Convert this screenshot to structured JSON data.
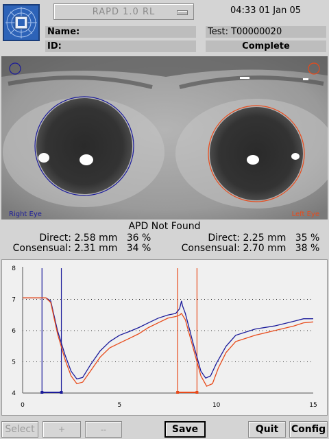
{
  "header": {
    "mode": "RAPD 1.0 RL",
    "datetime": "04:33 01 Jan 05",
    "name_label": "Name:",
    "id_label": "ID:",
    "test_label": "Test: T00000020",
    "status": "Complete"
  },
  "eyes": {
    "right_label": "Right Eye",
    "left_label": "Left Eye",
    "right_color": "#1a1a9a",
    "left_color": "#e84a1a"
  },
  "results": {
    "title": "APD Not Found",
    "right": {
      "direct_label": "Direct:",
      "direct_value": "2.58 mm",
      "direct_pct": "36 %",
      "consensual_label": "Consensual:",
      "consensual_value": "2.31 mm",
      "consensual_pct": "34 %"
    },
    "left": {
      "direct_label": "Direct:",
      "direct_value": "2.25 mm",
      "direct_pct": "35 %",
      "consensual_label": "Consensual:",
      "consensual_value": "2.70 mm",
      "consensual_pct": "38 %"
    }
  },
  "chart_data": {
    "type": "line",
    "xlim": [
      0,
      15
    ],
    "ylim": [
      4,
      8
    ],
    "x_ticks": [
      "0",
      "5",
      "10",
      "15"
    ],
    "y_ticks": [
      "4",
      "5",
      "6",
      "7",
      "8"
    ],
    "grid": "horizontal-dotted",
    "stimulus_right": {
      "start": 1,
      "end": 2,
      "color": "#1a1a9a"
    },
    "stimulus_left": {
      "start": 8,
      "end": 9,
      "color": "#e84a1a"
    },
    "series": [
      {
        "color": "#1a1a9a",
        "points": [
          [
            0,
            7.05
          ],
          [
            1.2,
            7.05
          ],
          [
            1.45,
            6.95
          ],
          [
            1.8,
            6.0
          ],
          [
            2.2,
            5.2
          ],
          [
            2.5,
            4.7
          ],
          [
            2.8,
            4.45
          ],
          [
            3.1,
            4.5
          ],
          [
            3.5,
            4.9
          ],
          [
            4,
            5.35
          ],
          [
            4.5,
            5.65
          ],
          [
            5,
            5.85
          ],
          [
            5.5,
            5.97
          ],
          [
            6,
            6.1
          ],
          [
            6.5,
            6.25
          ],
          [
            7,
            6.4
          ],
          [
            7.5,
            6.5
          ],
          [
            7.9,
            6.55
          ],
          [
            8.1,
            6.7
          ],
          [
            8.2,
            6.95
          ],
          [
            8.25,
            6.8
          ],
          [
            8.4,
            6.55
          ],
          [
            8.8,
            5.6
          ],
          [
            9.2,
            4.7
          ],
          [
            9.45,
            4.48
          ],
          [
            9.7,
            4.55
          ],
          [
            10,
            4.95
          ],
          [
            10.5,
            5.5
          ],
          [
            11,
            5.85
          ],
          [
            11.5,
            5.95
          ],
          [
            12,
            6.05
          ],
          [
            13,
            6.15
          ],
          [
            14,
            6.3
          ],
          [
            14.5,
            6.38
          ],
          [
            15,
            6.38
          ]
        ]
      },
      {
        "color": "#e84a1a",
        "points": [
          [
            0,
            7.05
          ],
          [
            1.2,
            7.05
          ],
          [
            1.45,
            6.9
          ],
          [
            1.8,
            5.9
          ],
          [
            2.2,
            5.05
          ],
          [
            2.5,
            4.55
          ],
          [
            2.8,
            4.3
          ],
          [
            3.1,
            4.35
          ],
          [
            3.5,
            4.7
          ],
          [
            4,
            5.15
          ],
          [
            4.5,
            5.45
          ],
          [
            5,
            5.6
          ],
          [
            5.5,
            5.75
          ],
          [
            6,
            5.9
          ],
          [
            6.5,
            6.1
          ],
          [
            7,
            6.25
          ],
          [
            7.5,
            6.4
          ],
          [
            7.9,
            6.45
          ],
          [
            8.1,
            6.5
          ],
          [
            8.2,
            6.55
          ],
          [
            8.4,
            6.35
          ],
          [
            8.8,
            5.45
          ],
          [
            9.2,
            4.55
          ],
          [
            9.5,
            4.22
          ],
          [
            9.8,
            4.3
          ],
          [
            10.1,
            4.8
          ],
          [
            10.5,
            5.3
          ],
          [
            11,
            5.65
          ],
          [
            11.5,
            5.75
          ],
          [
            12,
            5.85
          ],
          [
            13,
            6.0
          ],
          [
            14,
            6.15
          ],
          [
            14.5,
            6.25
          ],
          [
            15,
            6.28
          ]
        ]
      }
    ]
  },
  "footer": {
    "select_label": "Select",
    "plus_label": "+",
    "minus_label": "--",
    "save_label": "Save",
    "quit_label": "Quit",
    "config_label": "Config"
  }
}
